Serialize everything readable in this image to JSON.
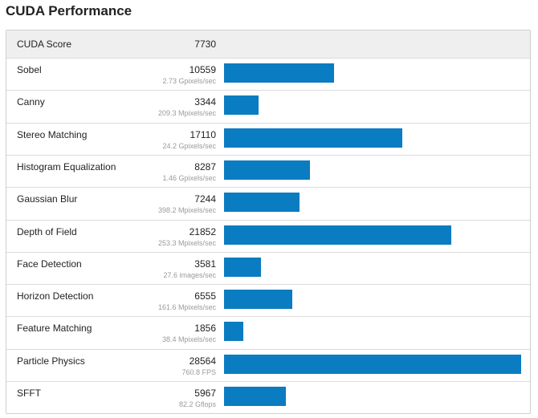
{
  "title": "CUDA Performance",
  "score": {
    "label": "CUDA Score",
    "value": "7730"
  },
  "colors": {
    "bar": "#0a7cc1",
    "header_bg": "#efefef"
  },
  "max_value": 28564,
  "tests": [
    {
      "name": "Sobel",
      "value": "10559",
      "sub": "2.73 Gpixels/sec",
      "score": 10559
    },
    {
      "name": "Canny",
      "value": "3344",
      "sub": "209.3 Mpixels/sec",
      "score": 3344
    },
    {
      "name": "Stereo Matching",
      "value": "17110",
      "sub": "24.2 Gpixels/sec",
      "score": 17110
    },
    {
      "name": "Histogram Equalization",
      "value": "8287",
      "sub": "1.46 Gpixels/sec",
      "score": 8287
    },
    {
      "name": "Gaussian Blur",
      "value": "7244",
      "sub": "398.2 Mpixels/sec",
      "score": 7244
    },
    {
      "name": "Depth of Field",
      "value": "21852",
      "sub": "253.3 Mpixels/sec",
      "score": 21852
    },
    {
      "name": "Face Detection",
      "value": "3581",
      "sub": "27.6 images/sec",
      "score": 3581
    },
    {
      "name": "Horizon Detection",
      "value": "6555",
      "sub": "161.6 Mpixels/sec",
      "score": 6555
    },
    {
      "name": "Feature Matching",
      "value": "1856",
      "sub": "38.4 Mpixels/sec",
      "score": 1856
    },
    {
      "name": "Particle Physics",
      "value": "28564",
      "sub": "760.8 FPS",
      "score": 28564
    },
    {
      "name": "SFFT",
      "value": "5967",
      "sub": "82.2 Gflops",
      "score": 5967
    }
  ]
}
